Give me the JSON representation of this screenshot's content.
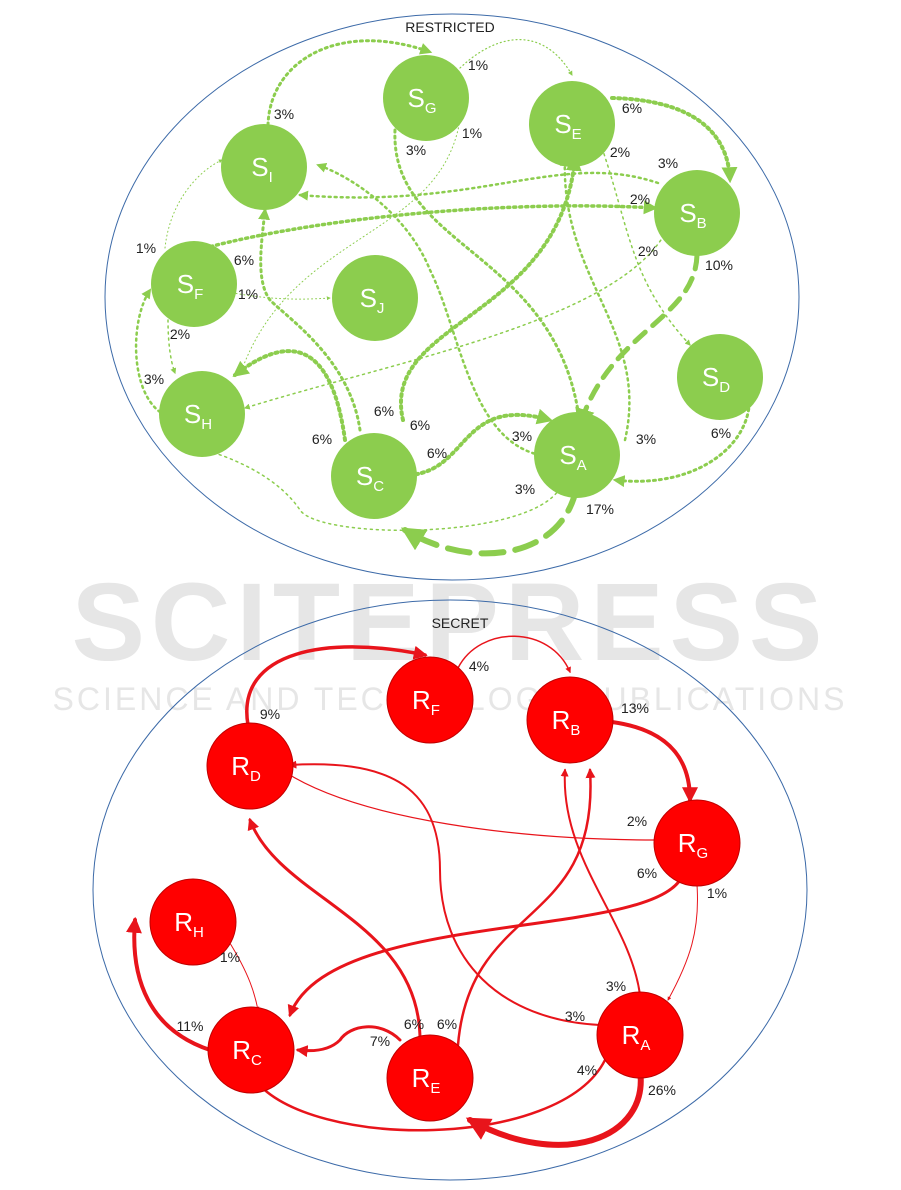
{
  "watermark": {
    "main": "SCITEPRESS",
    "sub": "SCIENCE AND TECHNOLOGY PUBLICATIONS"
  },
  "colors": {
    "green": "#8ccd4e",
    "green_edge": "#8ccd4e",
    "red": "#ff0000",
    "red_edge": "#e8141b",
    "ellipse_stroke": "#3c6aa8"
  },
  "restricted": {
    "title": "RESTRICTED",
    "nodes": [
      {
        "id": "SG",
        "letter": "S",
        "sub": "G"
      },
      {
        "id": "SE",
        "letter": "S",
        "sub": "E"
      },
      {
        "id": "SI",
        "letter": "S",
        "sub": "I"
      },
      {
        "id": "SB",
        "letter": "S",
        "sub": "B"
      },
      {
        "id": "SF",
        "letter": "S",
        "sub": "F"
      },
      {
        "id": "SJ",
        "letter": "S",
        "sub": "J"
      },
      {
        "id": "SD",
        "letter": "S",
        "sub": "D"
      },
      {
        "id": "SH",
        "letter": "S",
        "sub": "H"
      },
      {
        "id": "SA",
        "letter": "S",
        "sub": "A"
      },
      {
        "id": "SC",
        "letter": "S",
        "sub": "C"
      }
    ],
    "labels": [
      "1%",
      "3%",
      "1%",
      "3%",
      "6%",
      "2%",
      "3%",
      "2%",
      "1%",
      "6%",
      "1%",
      "2%",
      "10%",
      "2%",
      "3%",
      "6%",
      "6%",
      "6%",
      "6%",
      "3%",
      "3%",
      "3%",
      "6%",
      "17%"
    ]
  },
  "secret": {
    "title": "SECRET",
    "nodes": [
      {
        "id": "RF",
        "letter": "R",
        "sub": "F"
      },
      {
        "id": "RB",
        "letter": "R",
        "sub": "B"
      },
      {
        "id": "RD",
        "letter": "R",
        "sub": "D"
      },
      {
        "id": "RG",
        "letter": "R",
        "sub": "G"
      },
      {
        "id": "RH",
        "letter": "R",
        "sub": "H"
      },
      {
        "id": "RC",
        "letter": "R",
        "sub": "C"
      },
      {
        "id": "RE",
        "letter": "R",
        "sub": "E"
      },
      {
        "id": "RA",
        "letter": "R",
        "sub": "A"
      }
    ],
    "labels": [
      "4%",
      "9%",
      "13%",
      "2%",
      "6%",
      "1%",
      "1%",
      "11%",
      "7%",
      "6%",
      "6%",
      "3%",
      "3%",
      "4%",
      "26%"
    ]
  }
}
